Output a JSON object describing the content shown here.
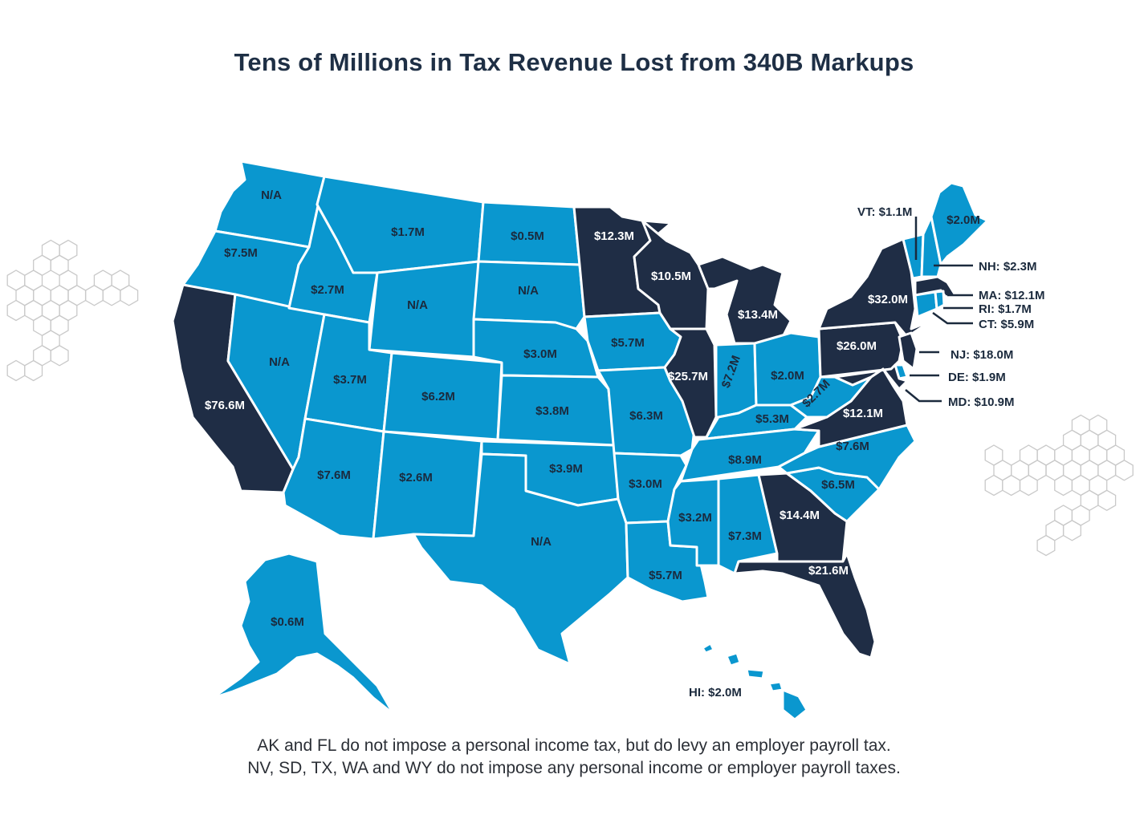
{
  "title": "Tens of Millions in Tax Revenue Lost from 340B Markups",
  "notes": [
    "AK and FL do not impose a personal income tax, but do levy an employer payroll tax.",
    "NV, SD, TX, WA and WY do not impose any personal income or employer payroll taxes."
  ],
  "colors": {
    "light": "#0a97cf",
    "dark": "#1f2d45",
    "border": "#ffffff"
  },
  "states": {
    "WA": {
      "label": "N/A",
      "tone": "light"
    },
    "OR": {
      "label": "$7.5M",
      "tone": "light"
    },
    "CA": {
      "label": "$76.6M",
      "tone": "dark"
    },
    "NV": {
      "label": "N/A",
      "tone": "light"
    },
    "ID": {
      "label": "$2.7M",
      "tone": "light"
    },
    "MT": {
      "label": "$1.7M",
      "tone": "light"
    },
    "WY": {
      "label": "N/A",
      "tone": "light"
    },
    "UT": {
      "label": "$3.7M",
      "tone": "light"
    },
    "AZ": {
      "label": "$7.6M",
      "tone": "light"
    },
    "CO": {
      "label": "$6.2M",
      "tone": "light"
    },
    "NM": {
      "label": "$2.6M",
      "tone": "light"
    },
    "ND": {
      "label": "$0.5M",
      "tone": "light"
    },
    "SD": {
      "label": "N/A",
      "tone": "light"
    },
    "NE": {
      "label": "$3.0M",
      "tone": "light"
    },
    "KS": {
      "label": "$3.8M",
      "tone": "light"
    },
    "OK": {
      "label": "$3.9M",
      "tone": "light"
    },
    "TX": {
      "label": "N/A",
      "tone": "light"
    },
    "MN": {
      "label": "$12.3M",
      "tone": "dark"
    },
    "IA": {
      "label": "$5.7M",
      "tone": "light"
    },
    "MO": {
      "label": "$6.3M",
      "tone": "light"
    },
    "AR": {
      "label": "$3.0M",
      "tone": "light"
    },
    "LA": {
      "label": "$5.7M",
      "tone": "light"
    },
    "WI": {
      "label": "$10.5M",
      "tone": "dark"
    },
    "IL": {
      "label": "$25.7M",
      "tone": "dark"
    },
    "MI": {
      "label": "$13.4M",
      "tone": "dark"
    },
    "IN": {
      "label": "$7.2M",
      "tone": "light"
    },
    "OH": {
      "label": "$2.0M",
      "tone": "light"
    },
    "KY": {
      "label": "$5.3M",
      "tone": "light"
    },
    "TN": {
      "label": "$8.9M",
      "tone": "light"
    },
    "MS": {
      "label": "$3.2M",
      "tone": "light"
    },
    "AL": {
      "label": "$7.3M",
      "tone": "light"
    },
    "GA": {
      "label": "$14.4M",
      "tone": "dark"
    },
    "FL": {
      "label": "$21.6M",
      "tone": "dark"
    },
    "SC": {
      "label": "$6.5M",
      "tone": "light"
    },
    "NC": {
      "label": "$7.6M",
      "tone": "light"
    },
    "VA": {
      "label": "$12.1M",
      "tone": "dark"
    },
    "WV": {
      "label": "$2.7M",
      "tone": "light"
    },
    "PA": {
      "label": "$26.0M",
      "tone": "dark"
    },
    "NY": {
      "label": "$32.0M",
      "tone": "dark"
    },
    "ME": {
      "label": "$2.0M",
      "tone": "light"
    },
    "AK": {
      "label": "$0.6M",
      "tone": "light"
    },
    "HI": {
      "label": "HI: $2.0M",
      "tone": "light"
    },
    "VT": {
      "label": "VT: $1.1M",
      "tone": "light"
    },
    "NH": {
      "label": "NH: $2.3M",
      "tone": "light"
    },
    "MA": {
      "label": "MA: $12.1M",
      "tone": "dark"
    },
    "RI": {
      "label": "RI: $1.7M",
      "tone": "light"
    },
    "CT": {
      "label": "CT: $5.9M",
      "tone": "light"
    },
    "NJ": {
      "label": "NJ: $18.0M",
      "tone": "dark"
    },
    "DE": {
      "label": "DE: $1.9M",
      "tone": "light"
    },
    "MD": {
      "label": "MD: $10.9M",
      "tone": "dark"
    }
  }
}
